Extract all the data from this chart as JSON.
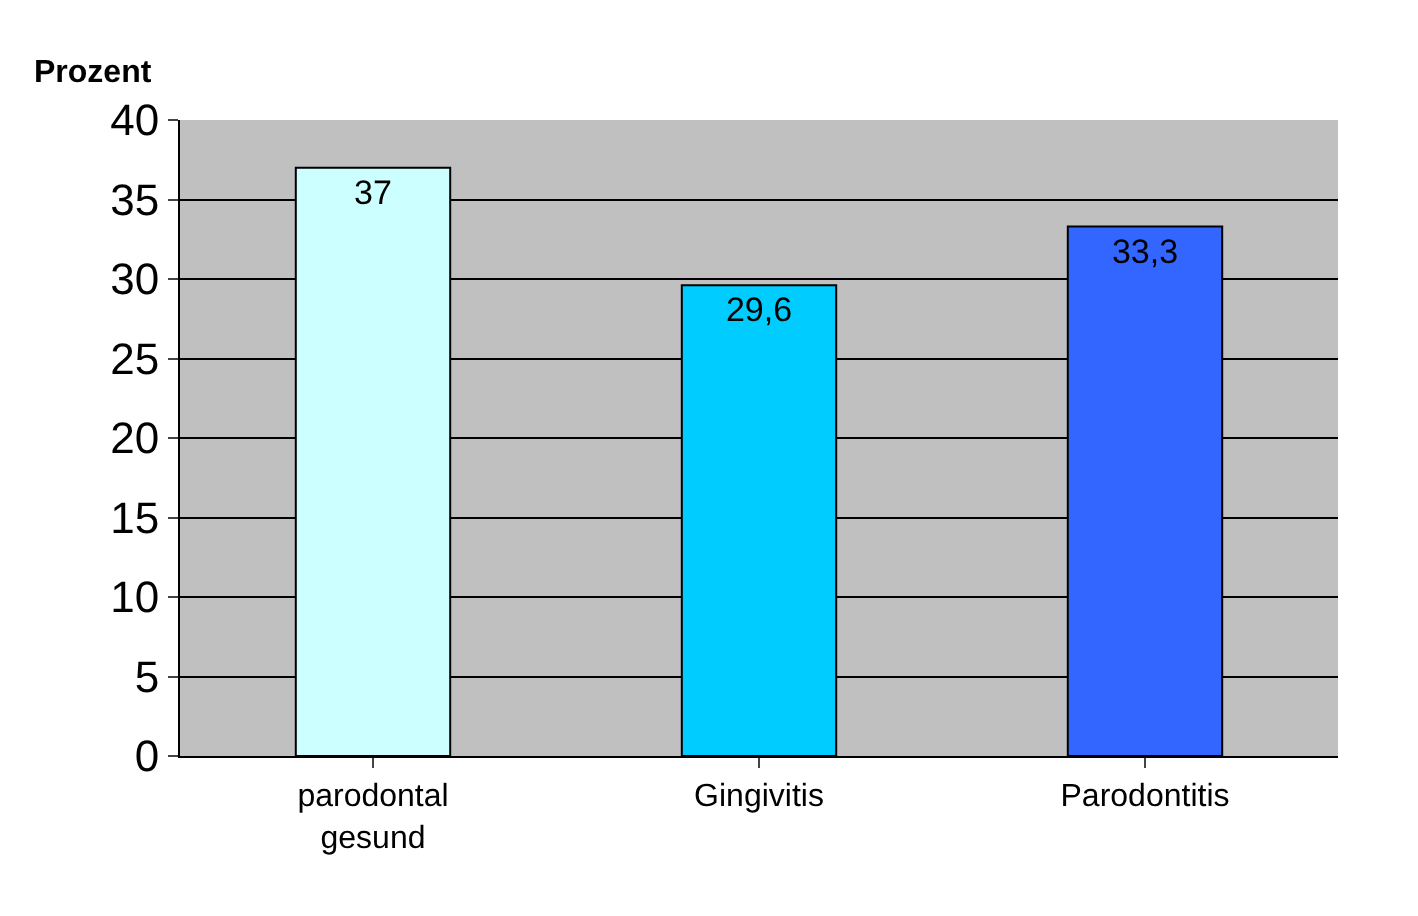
{
  "chart_data": {
    "type": "bar",
    "ylabel": "Prozent",
    "categories": [
      "parodontal gesund",
      "Gingivitis",
      "Parodontitis"
    ],
    "values": [
      37,
      29.6,
      33.3
    ],
    "colors": [
      "#ccffff",
      "#00ccff",
      "#3366ff"
    ],
    "value_labels": [
      "37",
      "29,6",
      "33,3"
    ],
    "ylim": [
      0,
      40
    ],
    "yticks": [
      0,
      5,
      10,
      15,
      20,
      25,
      30,
      35,
      40
    ],
    "grid": "y"
  }
}
